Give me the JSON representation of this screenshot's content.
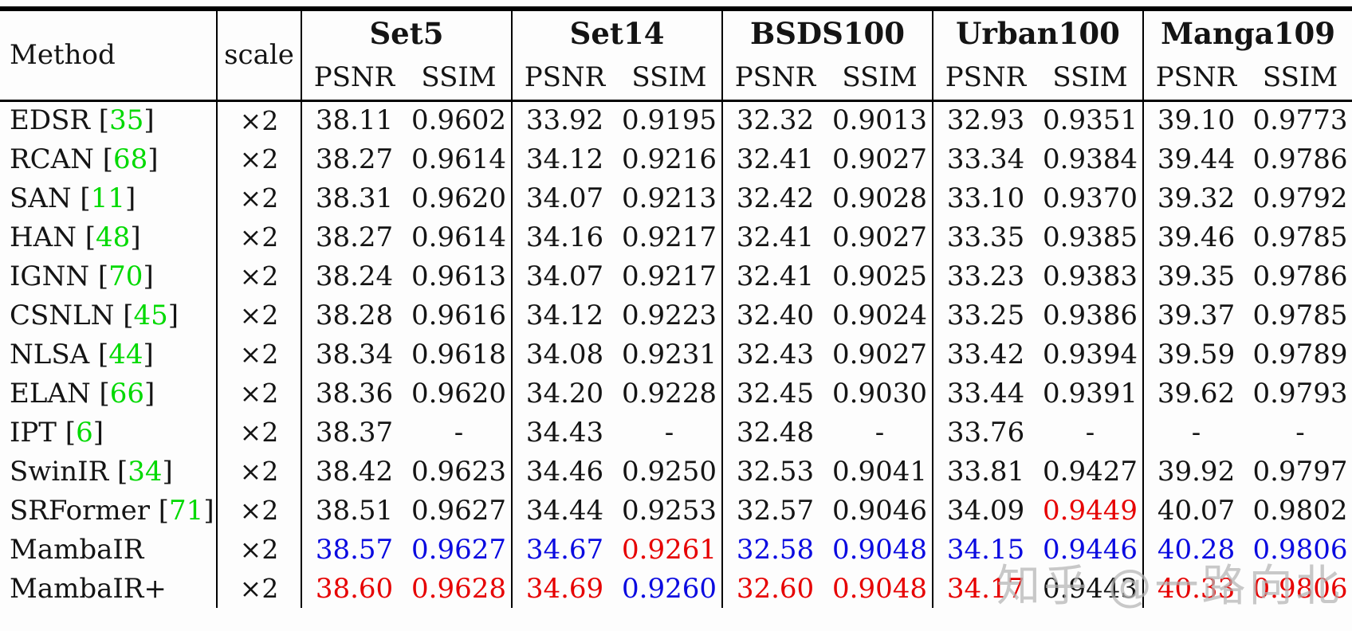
{
  "colors": {
    "black": "#141414",
    "blue": "#0a0ae0",
    "red": "#e60000",
    "green": "#00d900",
    "watermark": "#b5b5b5"
  },
  "watermark": {
    "text": "知乎 @一路向北"
  },
  "table": {
    "header": {
      "method": "Method",
      "scale": "scale",
      "datasets": [
        "Set5",
        "Set14",
        "BSDS100",
        "Urban100",
        "Manga109"
      ],
      "metrics": [
        "PSNR",
        "SSIM"
      ]
    },
    "rows": [
      {
        "method": "EDSR",
        "cite": "35",
        "scale": "×2",
        "values": [
          {
            "v": "38.11",
            "c": "k"
          },
          {
            "v": "0.9602",
            "c": "k"
          },
          {
            "v": "33.92",
            "c": "k"
          },
          {
            "v": "0.9195",
            "c": "k"
          },
          {
            "v": "32.32",
            "c": "k"
          },
          {
            "v": "0.9013",
            "c": "k"
          },
          {
            "v": "32.93",
            "c": "k"
          },
          {
            "v": "0.9351",
            "c": "k"
          },
          {
            "v": "39.10",
            "c": "k"
          },
          {
            "v": "0.9773",
            "c": "k"
          }
        ]
      },
      {
        "method": "RCAN",
        "cite": "68",
        "scale": "×2",
        "values": [
          {
            "v": "38.27",
            "c": "k"
          },
          {
            "v": "0.9614",
            "c": "k"
          },
          {
            "v": "34.12",
            "c": "k"
          },
          {
            "v": "0.9216",
            "c": "k"
          },
          {
            "v": "32.41",
            "c": "k"
          },
          {
            "v": "0.9027",
            "c": "k"
          },
          {
            "v": "33.34",
            "c": "k"
          },
          {
            "v": "0.9384",
            "c": "k"
          },
          {
            "v": "39.44",
            "c": "k"
          },
          {
            "v": "0.9786",
            "c": "k"
          }
        ]
      },
      {
        "method": "SAN",
        "cite": "11",
        "scale": "×2",
        "values": [
          {
            "v": "38.31",
            "c": "k"
          },
          {
            "v": "0.9620",
            "c": "k"
          },
          {
            "v": "34.07",
            "c": "k"
          },
          {
            "v": "0.9213",
            "c": "k"
          },
          {
            "v": "32.42",
            "c": "k"
          },
          {
            "v": "0.9028",
            "c": "k"
          },
          {
            "v": "33.10",
            "c": "k"
          },
          {
            "v": "0.9370",
            "c": "k"
          },
          {
            "v": "39.32",
            "c": "k"
          },
          {
            "v": "0.9792",
            "c": "k"
          }
        ]
      },
      {
        "method": "HAN",
        "cite": "48",
        "scale": "×2",
        "values": [
          {
            "v": "38.27",
            "c": "k"
          },
          {
            "v": "0.9614",
            "c": "k"
          },
          {
            "v": "34.16",
            "c": "k"
          },
          {
            "v": "0.9217",
            "c": "k"
          },
          {
            "v": "32.41",
            "c": "k"
          },
          {
            "v": "0.9027",
            "c": "k"
          },
          {
            "v": "33.35",
            "c": "k"
          },
          {
            "v": "0.9385",
            "c": "k"
          },
          {
            "v": "39.46",
            "c": "k"
          },
          {
            "v": "0.9785",
            "c": "k"
          }
        ]
      },
      {
        "method": "IGNN",
        "cite": "70",
        "scale": "×2",
        "values": [
          {
            "v": "38.24",
            "c": "k"
          },
          {
            "v": "0.9613",
            "c": "k"
          },
          {
            "v": "34.07",
            "c": "k"
          },
          {
            "v": "0.9217",
            "c": "k"
          },
          {
            "v": "32.41",
            "c": "k"
          },
          {
            "v": "0.9025",
            "c": "k"
          },
          {
            "v": "33.23",
            "c": "k"
          },
          {
            "v": "0.9383",
            "c": "k"
          },
          {
            "v": "39.35",
            "c": "k"
          },
          {
            "v": "0.9786",
            "c": "k"
          }
        ]
      },
      {
        "method": "CSNLN",
        "cite": "45",
        "scale": "×2",
        "values": [
          {
            "v": "38.28",
            "c": "k"
          },
          {
            "v": "0.9616",
            "c": "k"
          },
          {
            "v": "34.12",
            "c": "k"
          },
          {
            "v": "0.9223",
            "c": "k"
          },
          {
            "v": "32.40",
            "c": "k"
          },
          {
            "v": "0.9024",
            "c": "k"
          },
          {
            "v": "33.25",
            "c": "k"
          },
          {
            "v": "0.9386",
            "c": "k"
          },
          {
            "v": "39.37",
            "c": "k"
          },
          {
            "v": "0.9785",
            "c": "k"
          }
        ]
      },
      {
        "method": "NLSA",
        "cite": "44",
        "scale": "×2",
        "values": [
          {
            "v": "38.34",
            "c": "k"
          },
          {
            "v": "0.9618",
            "c": "k"
          },
          {
            "v": "34.08",
            "c": "k"
          },
          {
            "v": "0.9231",
            "c": "k"
          },
          {
            "v": "32.43",
            "c": "k"
          },
          {
            "v": "0.9027",
            "c": "k"
          },
          {
            "v": "33.42",
            "c": "k"
          },
          {
            "v": "0.9394",
            "c": "k"
          },
          {
            "v": "39.59",
            "c": "k"
          },
          {
            "v": "0.9789",
            "c": "k"
          }
        ]
      },
      {
        "method": "ELAN",
        "cite": "66",
        "scale": "×2",
        "values": [
          {
            "v": "38.36",
            "c": "k"
          },
          {
            "v": "0.9620",
            "c": "k"
          },
          {
            "v": "34.20",
            "c": "k"
          },
          {
            "v": "0.9228",
            "c": "k"
          },
          {
            "v": "32.45",
            "c": "k"
          },
          {
            "v": "0.9030",
            "c": "k"
          },
          {
            "v": "33.44",
            "c": "k"
          },
          {
            "v": "0.9391",
            "c": "k"
          },
          {
            "v": "39.62",
            "c": "k"
          },
          {
            "v": "0.9793",
            "c": "k"
          }
        ]
      },
      {
        "method": "IPT",
        "cite": "6",
        "scale": "×2",
        "values": [
          {
            "v": "38.37",
            "c": "k"
          },
          {
            "v": "-",
            "c": "k"
          },
          {
            "v": "34.43",
            "c": "k"
          },
          {
            "v": "-",
            "c": "k"
          },
          {
            "v": "32.48",
            "c": "k"
          },
          {
            "v": "-",
            "c": "k"
          },
          {
            "v": "33.76",
            "c": "k"
          },
          {
            "v": "-",
            "c": "k"
          },
          {
            "v": "-",
            "c": "k"
          },
          {
            "v": "-",
            "c": "k"
          }
        ]
      },
      {
        "method": "SwinIR",
        "cite": "34",
        "scale": "×2",
        "values": [
          {
            "v": "38.42",
            "c": "k"
          },
          {
            "v": "0.9623",
            "c": "k"
          },
          {
            "v": "34.46",
            "c": "k"
          },
          {
            "v": "0.9250",
            "c": "k"
          },
          {
            "v": "32.53",
            "c": "k"
          },
          {
            "v": "0.9041",
            "c": "k"
          },
          {
            "v": "33.81",
            "c": "k"
          },
          {
            "v": "0.9427",
            "c": "k"
          },
          {
            "v": "39.92",
            "c": "k"
          },
          {
            "v": "0.9797",
            "c": "k"
          }
        ]
      },
      {
        "method": "SRFormer",
        "cite": "71",
        "scale": "×2",
        "values": [
          {
            "v": "38.51",
            "c": "k"
          },
          {
            "v": "0.9627",
            "c": "k"
          },
          {
            "v": "34.44",
            "c": "k"
          },
          {
            "v": "0.9253",
            "c": "k"
          },
          {
            "v": "32.57",
            "c": "k"
          },
          {
            "v": "0.9046",
            "c": "k"
          },
          {
            "v": "34.09",
            "c": "k"
          },
          {
            "v": "0.9449",
            "c": "r"
          },
          {
            "v": "40.07",
            "c": "k"
          },
          {
            "v": "0.9802",
            "c": "k"
          }
        ]
      },
      {
        "method": "MambaIR",
        "cite": "",
        "scale": "×2",
        "values": [
          {
            "v": "38.57",
            "c": "b"
          },
          {
            "v": "0.9627",
            "c": "b"
          },
          {
            "v": "34.67",
            "c": "b"
          },
          {
            "v": "0.9261",
            "c": "r"
          },
          {
            "v": "32.58",
            "c": "b"
          },
          {
            "v": "0.9048",
            "c": "b"
          },
          {
            "v": "34.15",
            "c": "b"
          },
          {
            "v": "0.9446",
            "c": "b"
          },
          {
            "v": "40.28",
            "c": "b"
          },
          {
            "v": "0.9806",
            "c": "b"
          }
        ]
      },
      {
        "method": "MambaIR+",
        "cite": "",
        "scale": "×2",
        "values": [
          {
            "v": "38.60",
            "c": "r"
          },
          {
            "v": "0.9628",
            "c": "r"
          },
          {
            "v": "34.69",
            "c": "r"
          },
          {
            "v": "0.9260",
            "c": "b"
          },
          {
            "v": "32.60",
            "c": "r"
          },
          {
            "v": "0.9048",
            "c": "r"
          },
          {
            "v": "34.17",
            "c": "r"
          },
          {
            "v": "0.9443",
            "c": "k"
          },
          {
            "v": "40.33",
            "c": "r"
          },
          {
            "v": "0.9806",
            "c": "r"
          }
        ]
      }
    ]
  }
}
